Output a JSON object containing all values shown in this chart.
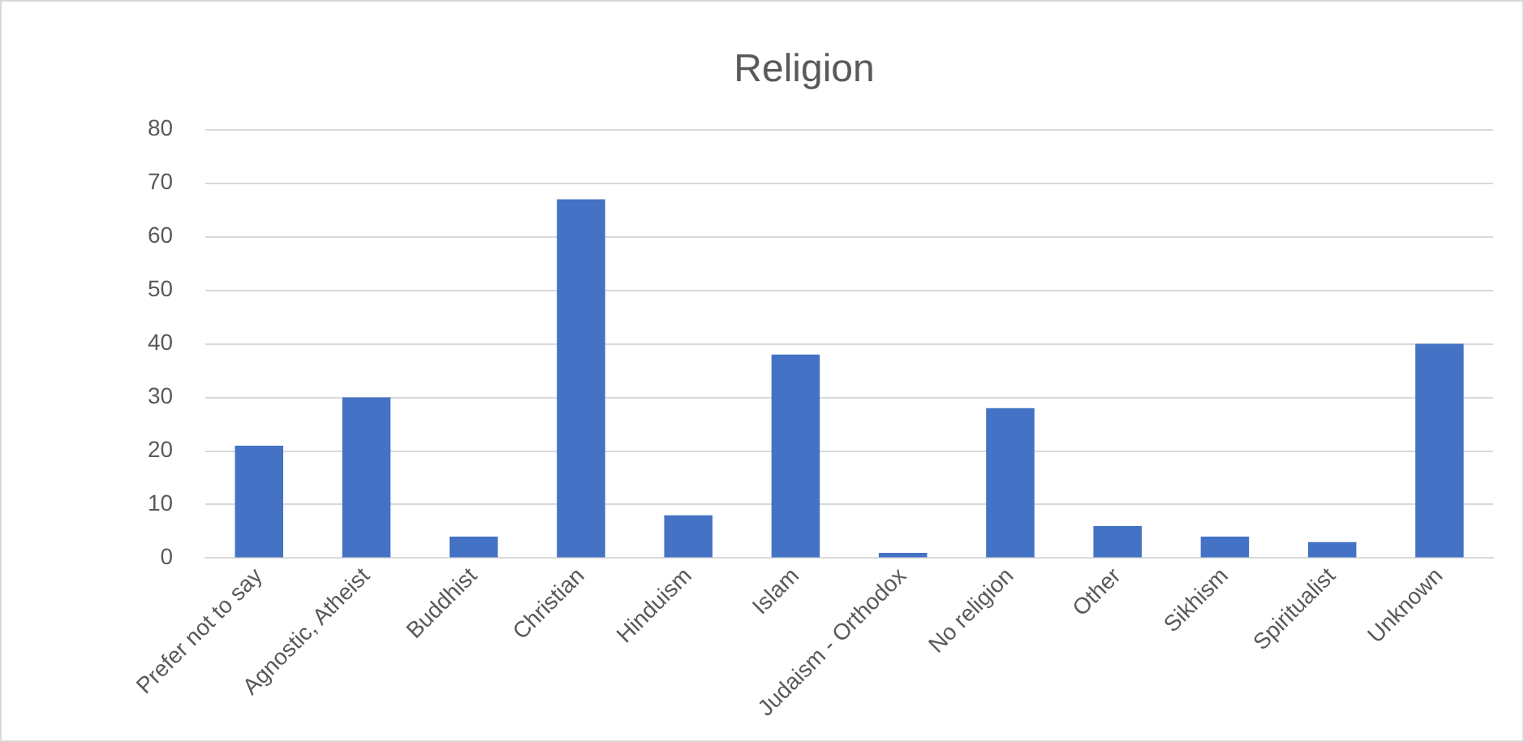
{
  "chart_data": {
    "type": "bar",
    "title": "Religion",
    "categories": [
      "Prefer not to say",
      "Agnostic, Atheist",
      "Buddhist",
      "Christian",
      "Hinduism",
      "Islam",
      "Judaism - Orthodox",
      "No religion",
      "Other",
      "Sikhism",
      "Spiritualist",
      "Unknown"
    ],
    "values": [
      21,
      30,
      4,
      67,
      8,
      38,
      1,
      28,
      6,
      4,
      3,
      40
    ],
    "color": "#4472c4",
    "ylim": [
      0,
      80
    ],
    "yticks": [
      0,
      10,
      20,
      30,
      40,
      50,
      60,
      70,
      80
    ],
    "grid": "y",
    "legend": false
  }
}
